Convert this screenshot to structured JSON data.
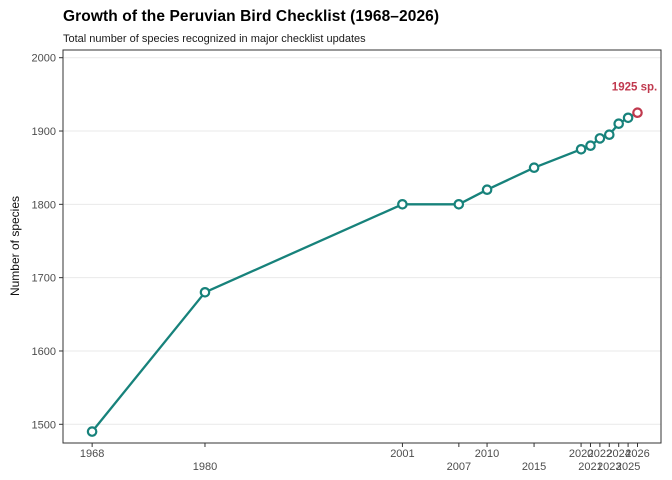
{
  "header": {
    "title": "Growth of the Peruvian Bird Checklist (1968–2026)",
    "subtitle": "Total number of species recognized in major checklist updates"
  },
  "chart_data": {
    "type": "line",
    "title": "Growth of the Peruvian Bird Checklist (1968–2026)",
    "subtitle": "Total number of species recognized in major checklist updates",
    "xlabel": "",
    "ylabel": "Number of species",
    "x": [
      1968,
      1980,
      2001,
      2007,
      2010,
      2015,
      2020,
      2021,
      2022,
      2023,
      2024,
      2025,
      2026
    ],
    "values": [
      1490,
      1680,
      1800,
      1800,
      1820,
      1850,
      1875,
      1880,
      1890,
      1895,
      1910,
      1918,
      1925
    ],
    "x_ticks": [
      1968,
      1980,
      2001,
      2007,
      2010,
      2015,
      2020,
      2021,
      2022,
      2023,
      2024,
      2025,
      2026
    ],
    "x_ticks_staggered": true,
    "y_ticks": [
      1500,
      1600,
      1700,
      1800,
      1900,
      2000
    ],
    "xlim": [
      1964.9,
      2028.5
    ],
    "ylim": [
      1474.5,
      2010.5
    ],
    "grid": "horizontal-major-only",
    "legend": "none",
    "highlight_index": 12,
    "annotation": {
      "text": "1925 sp."
    },
    "colors": {
      "line": "#17827B",
      "marker_fill": "#FFFFFF",
      "highlight": "#C0394E",
      "grid": "#E9E9E9",
      "axis_text": "#4D4D4D",
      "panel_border": "#333333"
    }
  }
}
